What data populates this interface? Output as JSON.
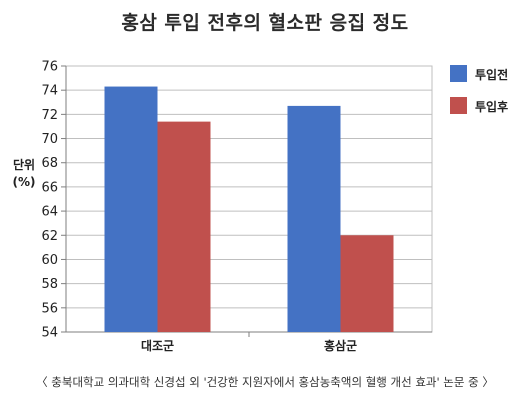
{
  "title": "홍삼 투입 전후의 혈소판 응집 정도",
  "ylabel_line1": "단위",
  "ylabel_line2": "(%)",
  "footnote": "〈 충북대학교 의과대학 신경섭 외 '건강한 지원자에서 홍삼농축액의 혈행 개선 효과' 논문 중 〉",
  "colors": {
    "before": "#4472c4",
    "after": "#c0504d",
    "grid": "#bfbfbf",
    "axis": "#7f7f7f"
  },
  "chart_data": {
    "type": "bar",
    "title": "홍삼 투입 전후의 혈소판 응집 정도",
    "xlabel": "",
    "ylabel": "단위 (%)",
    "categories": [
      "대조군",
      "홍삼군"
    ],
    "series": [
      {
        "name": "투입전",
        "values": [
          74.3,
          72.7
        ]
      },
      {
        "name": "투입후",
        "values": [
          71.4,
          62.0
        ]
      }
    ],
    "ylim": [
      54,
      76
    ],
    "yticks": [
      54,
      56,
      58,
      60,
      62,
      64,
      66,
      68,
      70,
      72,
      74,
      76
    ],
    "grid": true,
    "legend": "right"
  }
}
